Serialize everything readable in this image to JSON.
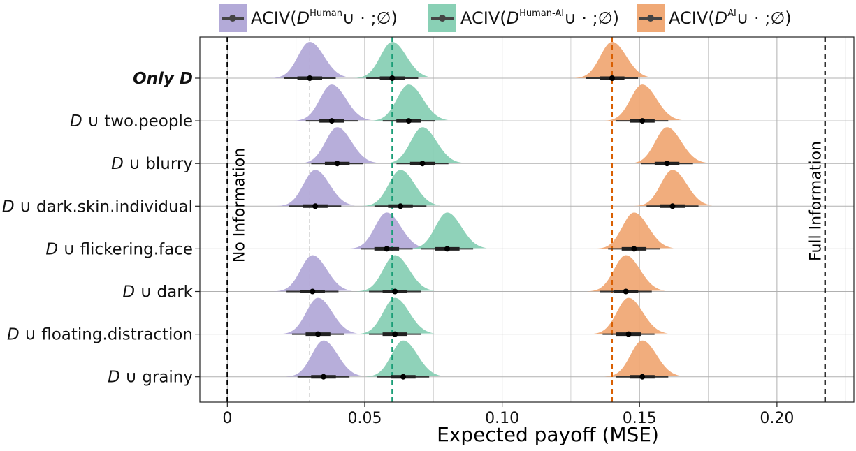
{
  "legend": [
    {
      "prefix": "ACIV(",
      "d": "D",
      "sup": "Human",
      "suffix": "∪ · ;∅)",
      "color": "#b3aad8"
    },
    {
      "prefix": "ACIV(",
      "d": "D",
      "sup": "Human-AI",
      "suffix": "∪ · ;∅)",
      "color": "#89d0b5"
    },
    {
      "prefix": "ACIV(",
      "d": "D",
      "sup": "AI",
      "suffix": "∪ · ;∅)",
      "color": "#f0a976"
    }
  ],
  "chart_data": {
    "type": "ridgeline",
    "xlabel": "Expected payoff (MSE)",
    "xlim": [
      -0.01,
      0.228
    ],
    "xticks": [
      0,
      0.05,
      0.1,
      0.15,
      0.2
    ],
    "xtick_labels": [
      "0",
      "0.05",
      "0.10",
      "0.15",
      "0.20"
    ],
    "grid": true,
    "legend_position": "top",
    "rows": [
      {
        "label": "Only D",
        "bold": true,
        "values": [
          0.03,
          0.06,
          0.14
        ]
      },
      {
        "label": "D ∪ two.people",
        "values": [
          0.038,
          0.066,
          0.151
        ]
      },
      {
        "label": "D ∪ blurry",
        "values": [
          0.04,
          0.071,
          0.16
        ]
      },
      {
        "label": "D ∪ dark.skin.individual",
        "values": [
          0.032,
          0.063,
          0.162
        ]
      },
      {
        "label": "D ∪ flickering.face",
        "values": [
          0.058,
          0.08,
          0.148
        ]
      },
      {
        "label": "D ∪ dark",
        "values": [
          0.031,
          0.061,
          0.145
        ]
      },
      {
        "label": "D ∪ floating.distraction",
        "values": [
          0.033,
          0.061,
          0.146
        ]
      },
      {
        "label": "D ∪ grainy",
        "values": [
          0.035,
          0.064,
          0.151
        ]
      }
    ],
    "reference_lines": [
      {
        "name": "No Information",
        "x": 0.0,
        "color": "#000000",
        "label": "No Information"
      },
      {
        "name": "Full Information",
        "x": 0.2175,
        "color": "#000000",
        "label": "Full Information"
      },
      {
        "name": "human-baseline",
        "x": 0.03,
        "color": "#888888"
      },
      {
        "name": "human-ai-baseline",
        "x": 0.06,
        "color": "#1b9e77"
      },
      {
        "name": "ai-baseline",
        "x": 0.14,
        "color": "#d95f02"
      }
    ],
    "series_colors": [
      "#b3aad8",
      "#89d0b5",
      "#f0a976"
    ]
  }
}
